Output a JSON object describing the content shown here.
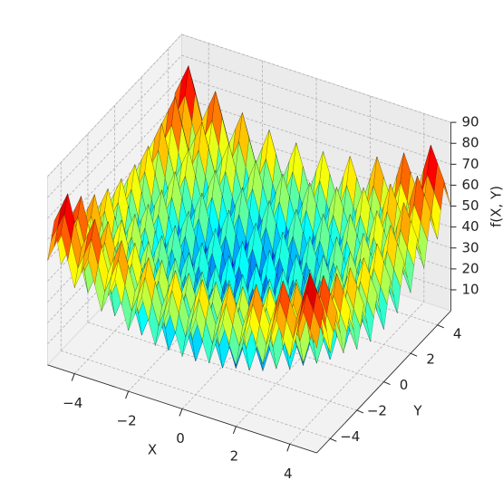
{
  "chart_data": {
    "type": "surface3d",
    "xlabel": "X",
    "ylabel": "Y",
    "zlabel": "f(X, Y)",
    "xlim": [
      -5,
      5
    ],
    "ylim": [
      -5,
      5
    ],
    "zlim": [
      0,
      90
    ],
    "xticks": [
      {
        "value": -4,
        "label": "−4"
      },
      {
        "value": -2,
        "label": "−2"
      },
      0,
      2,
      4
    ],
    "yticks": [
      {
        "value": -4,
        "label": "−4"
      },
      {
        "value": -2,
        "label": "−2"
      },
      0,
      2,
      4
    ],
    "zticks": [
      10,
      20,
      30,
      40,
      50,
      60,
      70,
      80,
      90
    ],
    "colormap": "jet",
    "grid": true
  }
}
